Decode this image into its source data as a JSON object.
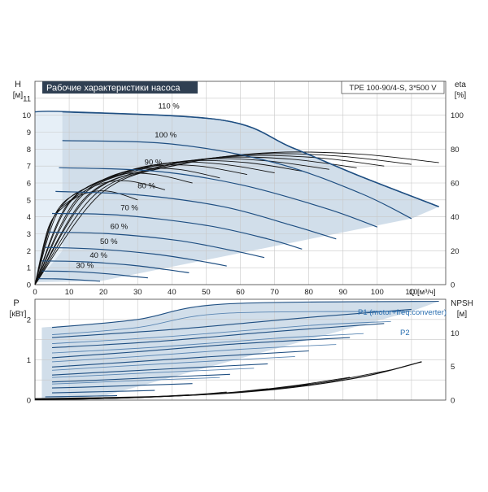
{
  "chart_data": [
    {
      "type": "line",
      "panel": "top",
      "title": "Рабочие характеристики насоса",
      "model_label": "TPE 100-90/4-S, 3*500 V",
      "y_label_left": "H",
      "y_unit_left": "[м]",
      "y_label_right": "eta",
      "y_unit_right": "[%]",
      "x_label": "Q [м³/ч]",
      "xlim": [
        0,
        120
      ],
      "ylim_left": [
        0,
        12
      ],
      "ylim_right": [
        0,
        120
      ],
      "x_ticks": [
        0,
        10,
        20,
        30,
        40,
        50,
        60,
        70,
        80,
        90,
        100,
        110
      ],
      "y_ticks_left": [
        0,
        1,
        2,
        3,
        4,
        5,
        6,
        7,
        8,
        9,
        10,
        11
      ],
      "y_ticks_right": [
        0,
        20,
        40,
        60,
        80,
        100
      ],
      "grid": true,
      "max_curve": [
        [
          0,
          10.2
        ],
        [
          10,
          10.2
        ],
        [
          55,
          9.7
        ],
        [
          75,
          8.1
        ],
        [
          95,
          6.4
        ],
        [
          118,
          4.6
        ]
      ],
      "head_curves": [
        {
          "label": "110 %",
          "label_q": 36,
          "points": [
            [
              8,
              10.2
            ],
            [
              55,
              9.7
            ],
            [
              75,
              8.1
            ],
            [
              95,
              6.4
            ],
            [
              118,
              4.6
            ]
          ]
        },
        {
          "label": "100 %",
          "label_q": 35,
          "points": [
            [
              8,
              8.5
            ],
            [
              40,
              8.3
            ],
            [
              70,
              7.2
            ],
            [
              95,
              5.4
            ],
            [
              110,
              3.9
            ]
          ]
        },
        {
          "label": "90 %",
          "label_q": 32,
          "points": [
            [
              7,
              6.9
            ],
            [
              35,
              6.7
            ],
            [
              60,
              5.9
            ],
            [
              85,
              4.5
            ],
            [
              100,
              3.4
            ]
          ]
        },
        {
          "label": "80 %",
          "label_q": 30,
          "points": [
            [
              6,
              5.5
            ],
            [
              30,
              5.3
            ],
            [
              55,
              4.6
            ],
            [
              75,
              3.5
            ],
            [
              88,
              2.7
            ]
          ]
        },
        {
          "label": "70 %",
          "label_q": 25,
          "points": [
            [
              5,
              4.2
            ],
            [
              25,
              4.1
            ],
            [
              50,
              3.5
            ],
            [
              68,
              2.7
            ],
            [
              78,
              2.1
            ]
          ]
        },
        {
          "label": "60 %",
          "label_q": 22,
          "points": [
            [
              4,
              3.1
            ],
            [
              22,
              3.0
            ],
            [
              42,
              2.6
            ],
            [
              58,
              2.0
            ],
            [
              67,
              1.6
            ]
          ]
        },
        {
          "label": "50 %",
          "label_q": 19,
          "points": [
            [
              3,
              2.2
            ],
            [
              18,
              2.1
            ],
            [
              35,
              1.8
            ],
            [
              48,
              1.4
            ],
            [
              56,
              1.1
            ]
          ]
        },
        {
          "label": "40 %",
          "label_q": 16,
          "points": [
            [
              2,
              1.4
            ],
            [
              14,
              1.35
            ],
            [
              28,
              1.15
            ],
            [
              38,
              0.9
            ],
            [
              45,
              0.7
            ]
          ]
        },
        {
          "label": "30 %",
          "label_q": 12,
          "points": [
            [
              2,
              0.8
            ],
            [
              10,
              0.78
            ],
            [
              20,
              0.66
            ],
            [
              28,
              0.5
            ],
            [
              33,
              0.4
            ]
          ]
        },
        {
          "label": "",
          "label_q": 0,
          "points": [
            [
              1,
              0.35
            ],
            [
              6,
              0.34
            ],
            [
              13,
              0.28
            ],
            [
              19,
              0.2
            ]
          ]
        }
      ],
      "eta_curves": [
        {
          "points": [
            [
              0,
              0
            ],
            [
              20,
              55
            ],
            [
              45,
              72
            ],
            [
              70,
              78
            ],
            [
              95,
              77
            ],
            [
              118,
              72
            ]
          ]
        },
        {
          "points": [
            [
              0,
              0
            ],
            [
              18,
              54
            ],
            [
              42,
              71
            ],
            [
              65,
              77
            ],
            [
              88,
              76
            ],
            [
              110,
              71
            ]
          ]
        },
        {
          "points": [
            [
              0,
              0
            ],
            [
              16,
              53
            ],
            [
              38,
              70
            ],
            [
              60,
              76
            ],
            [
              82,
              75
            ],
            [
              102,
              70
            ]
          ]
        },
        {
          "points": [
            [
              0,
              0
            ],
            [
              15,
              52
            ],
            [
              35,
              69
            ],
            [
              55,
              75
            ],
            [
              75,
              74
            ],
            [
              94,
              69
            ]
          ]
        },
        {
          "points": [
            [
              0,
              0
            ],
            [
              13,
              51
            ],
            [
              31,
              68
            ],
            [
              50,
              74
            ],
            [
              68,
              73
            ],
            [
              86,
              68
            ]
          ]
        },
        {
          "points": [
            [
              0,
              0
            ],
            [
              12,
              50
            ],
            [
              28,
              67
            ],
            [
              45,
              73
            ],
            [
              62,
              72
            ],
            [
              78,
              67
            ]
          ]
        },
        {
          "points": [
            [
              0,
              0
            ],
            [
              10,
              48
            ],
            [
              24,
              65
            ],
            [
              40,
              72
            ],
            [
              55,
              71
            ],
            [
              70,
              66
            ]
          ]
        },
        {
          "points": [
            [
              0,
              0
            ],
            [
              9,
              46
            ],
            [
              21,
              63
            ],
            [
              35,
              70
            ],
            [
              48,
              70
            ],
            [
              62,
              65
            ]
          ]
        },
        {
          "points": [
            [
              0,
              0
            ],
            [
              7,
              44
            ],
            [
              18,
              60
            ],
            [
              30,
              68
            ],
            [
              42,
              68
            ],
            [
              54,
              63
            ]
          ]
        },
        {
          "points": [
            [
              0,
              0
            ],
            [
              6,
              42
            ],
            [
              15,
              57
            ],
            [
              25,
              65
            ],
            [
              35,
              65
            ],
            [
              46,
              60
            ]
          ]
        },
        {
          "points": [
            [
              0,
              0
            ],
            [
              5,
              38
            ],
            [
              12,
              52
            ],
            [
              20,
              60
            ],
            [
              28,
              61
            ],
            [
              38,
              56
            ]
          ]
        },
        {
          "points": [
            [
              0,
              0
            ],
            [
              4,
              34
            ],
            [
              9,
              47
            ],
            [
              15,
              54
            ],
            [
              22,
              55
            ],
            [
              30,
              50
            ]
          ]
        }
      ]
    },
    {
      "type": "line",
      "panel": "bottom",
      "y_label_left": "P",
      "y_unit_left": "[кВт]",
      "y_label_right": "NPSH",
      "y_unit_right": "[м]",
      "xlim": [
        0,
        120
      ],
      "ylim_left": [
        0,
        2.5
      ],
      "ylim_right": [
        0,
        15
      ],
      "x_ticks": [
        0,
        10,
        20,
        30,
        40,
        50,
        60,
        70,
        80,
        90,
        100,
        110
      ],
      "y_ticks_left": [
        0,
        1,
        2
      ],
      "y_ticks_right": [
        0,
        5,
        10
      ],
      "grid": true,
      "series_labels": [
        "P1 (motor+freq.converter)",
        "P2"
      ],
      "power_envelope": [
        [
          2,
          1.8
        ],
        [
          30,
          2.0
        ],
        [
          55,
          2.4
        ],
        [
          118,
          2.45
        ]
      ],
      "power_curves_p1": [
        {
          "points": [
            [
              5,
              1.8
            ],
            [
              30,
              2.0
            ],
            [
              55,
              2.38
            ],
            [
              118,
              2.45
            ]
          ]
        },
        {
          "points": [
            [
              5,
              1.55
            ],
            [
              40,
              1.75
            ],
            [
              80,
              2.05
            ],
            [
              110,
              2.25
            ]
          ]
        },
        {
          "points": [
            [
              5,
              1.3
            ],
            [
              35,
              1.45
            ],
            [
              70,
              1.7
            ],
            [
              102,
              1.9
            ]
          ]
        },
        {
          "points": [
            [
              5,
              1.05
            ],
            [
              30,
              1.2
            ],
            [
              60,
              1.4
            ],
            [
              92,
              1.55
            ]
          ]
        },
        {
          "points": [
            [
              5,
              0.82
            ],
            [
              25,
              0.93
            ],
            [
              50,
              1.07
            ],
            [
              80,
              1.22
            ]
          ]
        },
        {
          "points": [
            [
              5,
              0.62
            ],
            [
              22,
              0.7
            ],
            [
              45,
              0.8
            ],
            [
              68,
              0.9
            ]
          ]
        },
        {
          "points": [
            [
              5,
              0.45
            ],
            [
              20,
              0.5
            ],
            [
              38,
              0.57
            ],
            [
              57,
              0.64
            ]
          ]
        },
        {
          "points": [
            [
              5,
              0.3
            ],
            [
              18,
              0.33
            ],
            [
              32,
              0.37
            ],
            [
              46,
              0.41
            ]
          ]
        },
        {
          "points": [
            [
              5,
              0.18
            ],
            [
              15,
              0.2
            ],
            [
              26,
              0.22
            ],
            [
              35,
              0.24
            ]
          ]
        },
        {
          "points": [
            [
              3,
              0.08
            ],
            [
              10,
              0.09
            ],
            [
              18,
              0.1
            ],
            [
              24,
              0.11
            ]
          ]
        }
      ],
      "power_curves_p2": [
        {
          "points": [
            [
              5,
              1.62
            ],
            [
              30,
              1.8
            ],
            [
              55,
              2.15
            ],
            [
              110,
              2.2
            ]
          ]
        },
        {
          "points": [
            [
              5,
              1.4
            ],
            [
              40,
              1.58
            ],
            [
              80,
              1.85
            ],
            [
              104,
              1.95
            ]
          ]
        },
        {
          "points": [
            [
              5,
              1.17
            ],
            [
              35,
              1.31
            ],
            [
              70,
              1.53
            ],
            [
              96,
              1.65
            ]
          ]
        },
        {
          "points": [
            [
              5,
              0.95
            ],
            [
              30,
              1.08
            ],
            [
              60,
              1.26
            ],
            [
              88,
              1.38
            ]
          ]
        },
        {
          "points": [
            [
              5,
              0.74
            ],
            [
              25,
              0.84
            ],
            [
              50,
              0.96
            ],
            [
              76,
              1.08
            ]
          ]
        },
        {
          "points": [
            [
              5,
              0.56
            ],
            [
              22,
              0.63
            ],
            [
              45,
              0.72
            ],
            [
              64,
              0.79
            ]
          ]
        },
        {
          "points": [
            [
              5,
              0.4
            ],
            [
              20,
              0.45
            ],
            [
              38,
              0.51
            ],
            [
              54,
              0.56
            ]
          ]
        }
      ],
      "npsh_curves": [
        {
          "points": [
            [
              0,
              0.2
            ],
            [
              40,
              0.6
            ],
            [
              70,
              1.6
            ],
            [
              95,
              3.4
            ],
            [
              113,
              5.7
            ]
          ]
        },
        {
          "points": [
            [
              0,
              0.15
            ],
            [
              35,
              0.5
            ],
            [
              62,
              1.3
            ],
            [
              85,
              2.7
            ],
            [
              104,
              4.5
            ]
          ]
        },
        {
          "points": [
            [
              0,
              0.12
            ],
            [
              30,
              0.4
            ],
            [
              55,
              1.0
            ],
            [
              75,
              2.1
            ],
            [
              92,
              3.4
            ]
          ]
        },
        {
          "points": [
            [
              0,
              0.1
            ],
            [
              26,
              0.3
            ],
            [
              48,
              0.8
            ],
            [
              66,
              1.5
            ],
            [
              80,
              2.4
            ]
          ]
        },
        {
          "points": [
            [
              0,
              0.08
            ],
            [
              22,
              0.25
            ],
            [
              40,
              0.6
            ],
            [
              56,
              1.1
            ],
            [
              68,
              1.7
            ]
          ]
        },
        {
          "points": [
            [
              0,
              0.06
            ],
            [
              18,
              0.2
            ],
            [
              32,
              0.45
            ],
            [
              46,
              0.8
            ],
            [
              56,
              1.2
            ]
          ]
        },
        {
          "points": [
            [
              0,
              0.05
            ],
            [
              14,
              0.15
            ],
            [
              26,
              0.32
            ],
            [
              36,
              0.55
            ],
            [
              45,
              0.8
            ]
          ]
        }
      ]
    }
  ]
}
